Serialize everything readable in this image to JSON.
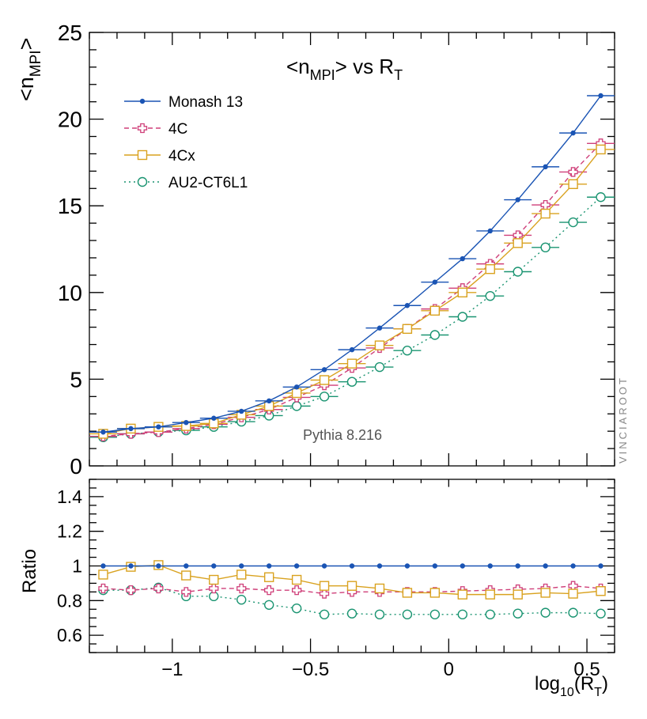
{
  "chart_data": {
    "type": "line",
    "title_main": "<n",
    "title_sub": "MPI",
    "title_mid": "> vs R",
    "title_sub2": "T",
    "ylabel_main": "<n",
    "ylabel_sub": "MPI",
    "ylabel_end": ">",
    "ratio_ylabel": "Ratio",
    "xlabel_main": "log",
    "xlabel_sub": "10",
    "xlabel_mid": "(R",
    "xlabel_sub2": "T",
    "xlabel_end": ")",
    "annotation": "Pythia 8.216",
    "watermark": "VINCIAROOT",
    "xlim": [
      -1.3,
      0.6
    ],
    "ylim": [
      0,
      25
    ],
    "ratio_ylim": [
      0.5,
      1.5
    ],
    "x_ticks": [
      "−1",
      "−0.5",
      "0",
      "0.5"
    ],
    "y_ticks": [
      "0",
      "5",
      "10",
      "15",
      "20",
      "25"
    ],
    "ratio_ticks": [
      "0.6",
      "0.8",
      "1",
      "1.2",
      "1.4"
    ],
    "x_centers": [
      -1.25,
      -1.15,
      -1.05,
      -0.95,
      -0.85,
      -0.75,
      -0.65,
      -0.55,
      -0.45,
      -0.35,
      -0.25,
      -0.15,
      -0.05,
      0.05,
      0.15,
      0.25,
      0.35,
      0.45,
      0.55
    ],
    "bin_half_width": 0.05,
    "series": [
      {
        "name": "Monash 13",
        "color": "#1a54b4",
        "marker": "dot",
        "dash": "",
        "values": [
          1.95,
          2.15,
          2.25,
          2.5,
          2.75,
          3.15,
          3.75,
          4.55,
          5.55,
          6.7,
          7.95,
          9.25,
          10.6,
          11.95,
          13.55,
          15.35,
          17.25,
          19.2,
          21.35
        ],
        "ratio": [
          1,
          1,
          1,
          1,
          1,
          1,
          1,
          1,
          1,
          1,
          1,
          1,
          1,
          1,
          1,
          1,
          1,
          1,
          1
        ]
      },
      {
        "name": "4C",
        "color": "#cf3f79",
        "marker": "cross",
        "dash": "6,4",
        "values": [
          1.7,
          1.85,
          1.95,
          2.15,
          2.4,
          2.8,
          3.25,
          3.95,
          4.65,
          5.65,
          6.8,
          7.9,
          9.05,
          10.25,
          11.65,
          13.3,
          15.05,
          16.95,
          18.6
        ],
        "ratio": [
          0.87,
          0.86,
          0.87,
          0.85,
          0.87,
          0.87,
          0.86,
          0.86,
          0.84,
          0.85,
          0.85,
          0.85,
          0.85,
          0.855,
          0.86,
          0.865,
          0.87,
          0.885,
          0.87
        ]
      },
      {
        "name": "4Cx",
        "color": "#d9a21f",
        "marker": "square",
        "dash": "",
        "values": [
          1.85,
          2.15,
          2.25,
          2.3,
          2.45,
          2.95,
          3.45,
          4.2,
          4.95,
          5.9,
          6.95,
          7.9,
          8.95,
          10.0,
          11.35,
          12.85,
          14.55,
          16.25,
          18.25
        ],
        "ratio": [
          0.95,
          0.995,
          1.005,
          0.945,
          0.92,
          0.95,
          0.935,
          0.92,
          0.885,
          0.885,
          0.87,
          0.845,
          0.845,
          0.835,
          0.835,
          0.835,
          0.845,
          0.84,
          0.855
        ]
      },
      {
        "name": "AU2-CT6L1",
        "color": "#1a9471",
        "marker": "circle",
        "dash": "2,4",
        "values": [
          1.65,
          1.85,
          1.95,
          2.05,
          2.25,
          2.55,
          2.9,
          3.45,
          4.0,
          4.85,
          5.7,
          6.65,
          7.55,
          8.6,
          9.8,
          11.2,
          12.6,
          14.05,
          15.5
        ],
        "ratio": [
          0.86,
          0.86,
          0.875,
          0.825,
          0.825,
          0.805,
          0.775,
          0.755,
          0.72,
          0.725,
          0.72,
          0.72,
          0.72,
          0.72,
          0.72,
          0.725,
          0.73,
          0.73,
          0.725
        ]
      }
    ]
  }
}
